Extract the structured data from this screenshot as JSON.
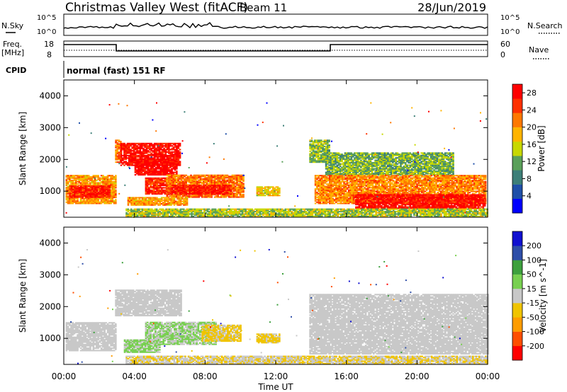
{
  "header": {
    "title": "Christmas Valley West (fitACF)",
    "beam": "Beam 11",
    "date": "28/Jun/2019"
  },
  "noise_panel": {
    "left_label": "N.Sky",
    "right_label": "N.Search",
    "left_ticks": [
      "10^5",
      "10^0"
    ],
    "right_ticks": [
      "10^5",
      "10^0"
    ]
  },
  "freq_panel": {
    "left_label_1": "Freq.",
    "left_label_2": "[MHz]",
    "right_label": "Nave",
    "left_ticks": [
      "18",
      "8"
    ],
    "right_ticks": [
      "60",
      "0"
    ]
  },
  "cpid": {
    "label": "CPID",
    "value": "normal (fast) 151 RF"
  },
  "axes": {
    "ylabel": "Slant Range [km]",
    "xlabel": "Time UT",
    "yticks": [
      "1000",
      "2000",
      "3000",
      "4000"
    ],
    "xticks": [
      "00:00",
      "04:00",
      "08:00",
      "12:00",
      "16:00",
      "20:00",
      "00:00"
    ]
  },
  "colors": {
    "power": [
      "#0000ff",
      "#1f4fa8",
      "#3d7f78",
      "#5aa05a",
      "#c8d800",
      "#ffb400",
      "#ff7800",
      "#ff3000",
      "#ff0000"
    ],
    "velocity": [
      "#ff0000",
      "#ff4e00",
      "#ff9c00",
      "#f0c400",
      "#c8c8c8",
      "#78d050",
      "#3da03d",
      "#2e4ea8",
      "#1010d0"
    ]
  },
  "chart_data": [
    {
      "type": "heatmap",
      "title": "Power",
      "xlabel": "Time UT",
      "ylabel": "Slant Range [km]",
      "xlim": [
        0,
        24
      ],
      "ylim": [
        180,
        4500
      ],
      "colorbar": {
        "label": "Power [dB]",
        "ticks": [
          "4",
          "8",
          "12",
          "16",
          "20",
          "24",
          "28"
        ],
        "range": [
          0,
          30
        ]
      },
      "regions": [
        {
          "t": [
            0.1,
            2.9
          ],
          "r": [
            600,
            1500
          ],
          "v": 20
        },
        {
          "t": [
            0.3,
            2.6
          ],
          "r": [
            800,
            1150
          ],
          "v": 27
        },
        {
          "t": [
            2.9,
            3.2
          ],
          "r": [
            1900,
            2600
          ],
          "v": 22
        },
        {
          "t": [
            3.2,
            6.6
          ],
          "r": [
            1800,
            2500
          ],
          "v": 28
        },
        {
          "t": [
            4.0,
            6.4
          ],
          "r": [
            1500,
            2000
          ],
          "v": 29
        },
        {
          "t": [
            4.6,
            6.0
          ],
          "r": [
            900,
            1400
          ],
          "v": 26
        },
        {
          "t": [
            5.8,
            10.2
          ],
          "r": [
            800,
            1500
          ],
          "v": 22
        },
        {
          "t": [
            6.0,
            9.5
          ],
          "r": [
            900,
            1200
          ],
          "v": 27
        },
        {
          "t": [
            3.6,
            7.0
          ],
          "r": [
            550,
            800
          ],
          "v": 20
        },
        {
          "t": [
            10.9,
            12.2
          ],
          "r": [
            850,
            1150
          ],
          "v": 17
        },
        {
          "t": [
            13.9,
            15.0
          ],
          "r": [
            1900,
            2600
          ],
          "v": 13
        },
        {
          "t": [
            14.8,
            22.0
          ],
          "r": [
            1500,
            2200
          ],
          "v": 12
        },
        {
          "t": [
            14.2,
            23.9
          ],
          "r": [
            600,
            1500
          ],
          "v": 21
        },
        {
          "t": [
            16.5,
            23.8
          ],
          "r": [
            450,
            900
          ],
          "v": 28
        },
        {
          "t": [
            3.5,
            24.0
          ],
          "r": [
            190,
            420
          ],
          "v": 14
        }
      ]
    },
    {
      "type": "heatmap",
      "title": "Velocity",
      "xlabel": "Time UT",
      "ylabel": "Slant Range [km]",
      "xlim": [
        0,
        24
      ],
      "ylim": [
        180,
        4500
      ],
      "colorbar": {
        "label": "Velocity [m s^-1]",
        "ticks": [
          "-200",
          "-100",
          "-50",
          "-15",
          "15",
          "50",
          "100",
          "200"
        ],
        "range": [
          -250,
          250
        ]
      },
      "regions": [
        {
          "t": [
            0.1,
            2.9
          ],
          "r": [
            600,
            1500
          ],
          "v": 0
        },
        {
          "t": [
            2.9,
            6.6
          ],
          "r": [
            1700,
            2500
          ],
          "v": 0
        },
        {
          "t": [
            3.4,
            5.4
          ],
          "r": [
            550,
            950
          ],
          "v": 35
        },
        {
          "t": [
            4.6,
            8.6
          ],
          "r": [
            800,
            1500
          ],
          "v": 30
        },
        {
          "t": [
            7.8,
            10.0
          ],
          "r": [
            900,
            1400
          ],
          "v": -35
        },
        {
          "t": [
            3.5,
            24.0
          ],
          "r": [
            190,
            420
          ],
          "v": -25
        },
        {
          "t": [
            10.9,
            12.2
          ],
          "r": [
            850,
            1150
          ],
          "v": -40
        },
        {
          "t": [
            13.9,
            24.0
          ],
          "r": [
            500,
            2400
          ],
          "v": 0
        }
      ]
    }
  ]
}
